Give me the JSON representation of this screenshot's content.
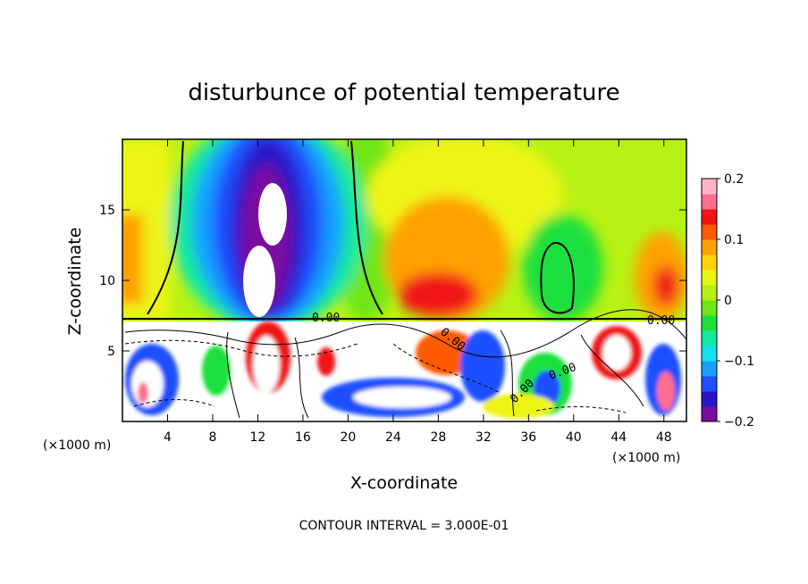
{
  "chart_data": {
    "type": "heatmap",
    "title": "disturbunce of potential temperature",
    "xlabel": "X-coordinate",
    "ylabel": "Z-coordinate",
    "x_unit": "(×1000 m)",
    "x_unit_right": "(×1000 m)",
    "xlim": [
      0,
      50
    ],
    "ylim": [
      0,
      20
    ],
    "x_ticks": [
      "4",
      "8",
      "12",
      "16",
      "20",
      "24",
      "28",
      "32",
      "36",
      "40",
      "44",
      "48"
    ],
    "y_ticks": [
      "5",
      "10",
      "15"
    ],
    "colorbar": {
      "range": [
        -0.2,
        0.2
      ],
      "labels": [
        "0.2",
        "0.1",
        "0",
        "−0.1",
        "−0.2"
      ],
      "colors": [
        "#7a0ca0",
        "#2b14c8",
        "#1f50ff",
        "#19a0ff",
        "#14e0f0",
        "#14e8a0",
        "#1ee03c",
        "#6ee614",
        "#b4f014",
        "#ebf514",
        "#ffd20a",
        "#ffa005",
        "#ff5a05",
        "#f01414",
        "#ff6e8c",
        "#ffb4c8"
      ]
    },
    "contour_labels": [
      "0.00",
      "0.00",
      "0.00",
      "0.00",
      "0.00"
    ],
    "footer": "CONTOUR INTERVAL = 3.000E-01",
    "grid": false
  }
}
